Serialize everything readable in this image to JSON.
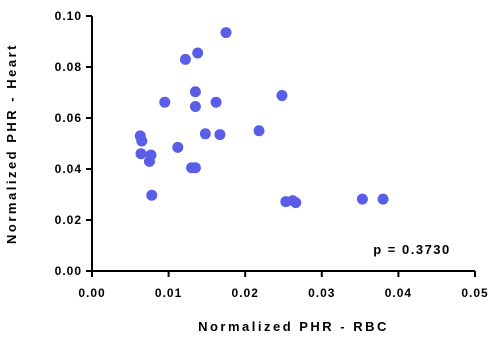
{
  "chart_data": {
    "type": "scatter",
    "xlabel": "Normalized PHR - RBC",
    "ylabel": "Normalized PHR - Heart",
    "xlim": [
      0.0,
      0.05
    ],
    "ylim": [
      0.0,
      0.1
    ],
    "x_ticks": [
      "0.00",
      "0.01",
      "0.02",
      "0.03",
      "0.04",
      "0.05"
    ],
    "y_ticks": [
      "0.00",
      "0.02",
      "0.04",
      "0.06",
      "0.08",
      "0.10"
    ],
    "annotation": "p = 0.3730",
    "legend": "none",
    "grid": false,
    "marker_color": "#5a5ee6",
    "series": [
      {
        "x": [
          0.0175,
          0.0138,
          0.0122,
          0.0135,
          0.0095,
          0.0162,
          0.0135,
          0.0248,
          0.0218,
          0.0167,
          0.0148,
          0.0063,
          0.0065,
          0.0112,
          0.0064,
          0.0077,
          0.0075,
          0.013,
          0.0135,
          0.0078,
          0.0253,
          0.0262,
          0.0266,
          0.0353,
          0.038
        ],
        "y": [
          0.0935,
          0.0855,
          0.083,
          0.0703,
          0.0662,
          0.0662,
          0.0645,
          0.0688,
          0.055,
          0.0535,
          0.0538,
          0.053,
          0.051,
          0.0485,
          0.046,
          0.0455,
          0.043,
          0.0405,
          0.0405,
          0.0297,
          0.0272,
          0.0276,
          0.0268,
          0.0282,
          0.0282
        ]
      }
    ]
  }
}
